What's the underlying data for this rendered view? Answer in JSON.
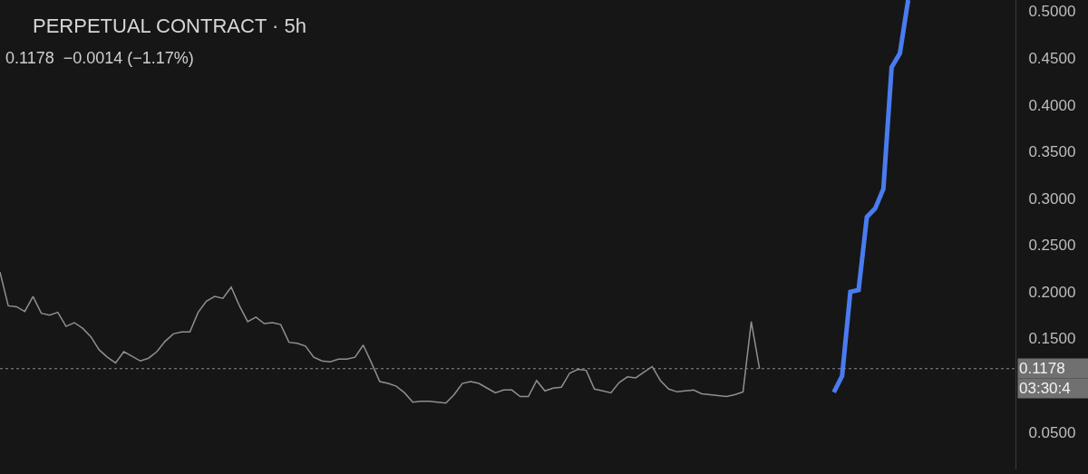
{
  "chart_data": {
    "type": "line",
    "title": "PERPETUAL CONTRACT · 5h",
    "subtitle": "0.1178  −0.0014 (−1.17%)",
    "categories": [
      null,
      null,
      null,
      null,
      null,
      null,
      null,
      null,
      null,
      null,
      null,
      null,
      null,
      null,
      null,
      null,
      null,
      null,
      null,
      null,
      null,
      null,
      null,
      null,
      null,
      null,
      null,
      null,
      null,
      null,
      null,
      null,
      null,
      null,
      null,
      null,
      null,
      null,
      null,
      null,
      null,
      null,
      null,
      null,
      null,
      null,
      null,
      null,
      null,
      null,
      null,
      null,
      null,
      null,
      null,
      null,
      null,
      null,
      null,
      null,
      null,
      null,
      null,
      null,
      null,
      null,
      null,
      null,
      null,
      null,
      null,
      null,
      null,
      null,
      null,
      null,
      null,
      null,
      null,
      null,
      null,
      null,
      null,
      null,
      null,
      null,
      null,
      null,
      null,
      null,
      null,
      null,
      null,
      null,
      null,
      null,
      null,
      null,
      null,
      null,
      null,
      null,
      null,
      null,
      null,
      null,
      null,
      null,
      null,
      null,
      null,
      null,
      null,
      null,
      null,
      null,
      null,
      null,
      null,
      null,
      null,
      null,
      null,
      null
    ],
    "ylim": [
      0.01,
      0.512
    ],
    "yticks": [
      {
        "value": 0.05,
        "label": "0.0500"
      },
      {
        "value": 0.15,
        "label": "0.1500"
      },
      {
        "value": 0.2,
        "label": "0.2000"
      },
      {
        "value": 0.25,
        "label": "0.2500"
      },
      {
        "value": 0.3,
        "label": "0.3000"
      },
      {
        "value": 0.35,
        "label": "0.3500"
      },
      {
        "value": 0.4,
        "label": "0.4000"
      },
      {
        "value": 0.45,
        "label": "0.4500"
      },
      {
        "value": 0.5,
        "label": "0.5000"
      }
    ],
    "tick_labels": "y",
    "line_style": "solid",
    "ref_lines": [
      {
        "axis": "y",
        "value": 0.1178,
        "label": "0.1178",
        "color": "#8c8c8c",
        "line_style": "dotted"
      }
    ],
    "annotations": [
      "03:30:4"
    ],
    "series": [
      {
        "color": "#8f8f8f",
        "values": [
          0.221,
          0.185,
          0.184,
          0.179,
          0.195,
          0.177,
          0.175,
          0.178,
          0.163,
          0.167,
          0.161,
          0.152,
          0.138,
          0.13,
          0.124,
          0.136,
          0.131,
          0.126,
          0.129,
          0.136,
          0.147,
          0.155,
          0.157,
          0.157,
          0.178,
          0.19,
          0.195,
          0.193,
          0.205,
          0.185,
          0.168,
          0.173,
          0.166,
          0.167,
          0.165,
          0.146,
          0.145,
          0.142,
          0.13,
          0.126,
          0.125,
          0.128,
          0.128,
          0.13,
          0.143,
          0.124,
          0.104,
          0.102,
          0.099,
          0.092,
          0.082,
          0.083,
          0.083,
          0.082,
          0.081,
          0.09,
          0.102,
          0.104,
          0.102,
          0.097,
          0.092,
          0.095,
          0.095,
          0.088,
          0.088,
          0.105,
          0.094,
          0.097,
          0.098,
          0.113,
          0.117,
          0.116,
          0.096,
          0.094,
          0.092,
          0.103,
          0.109,
          0.108,
          0.114,
          0.12,
          0.105,
          0.096,
          0.093,
          0.094,
          0.095,
          0.091,
          0.09,
          0.089,
          0.088,
          0.09,
          0.093,
          0.168,
          0.1178,
          null,
          null,
          null,
          null,
          null,
          null,
          null,
          null,
          null,
          null,
          null,
          null,
          null,
          null,
          null,
          null,
          null,
          null,
          null,
          null,
          null,
          null,
          null,
          null,
          null,
          null,
          null,
          null,
          null,
          null,
          null
        ]
      },
      {
        "color": "#4a7cf0",
        "values": [
          null,
          null,
          null,
          null,
          null,
          null,
          null,
          null,
          null,
          null,
          null,
          null,
          null,
          null,
          null,
          null,
          null,
          null,
          null,
          null,
          null,
          null,
          null,
          null,
          null,
          null,
          null,
          null,
          null,
          null,
          null,
          null,
          null,
          null,
          null,
          null,
          null,
          null,
          null,
          null,
          null,
          null,
          null,
          null,
          null,
          null,
          null,
          null,
          null,
          null,
          null,
          null,
          null,
          null,
          null,
          null,
          null,
          null,
          null,
          null,
          null,
          null,
          null,
          null,
          null,
          null,
          null,
          null,
          null,
          null,
          null,
          null,
          null,
          null,
          null,
          null,
          null,
          null,
          null,
          null,
          null,
          null,
          null,
          null,
          null,
          null,
          null,
          null,
          null,
          null,
          null,
          null,
          null,
          null,
          null,
          null,
          null,
          null,
          null,
          null,
          null,
          0.0924,
          0.11,
          0.2,
          0.202,
          0.28,
          0.289,
          0.31,
          0.44,
          0.455,
          0.512,
          null,
          null,
          null,
          null,
          null,
          null,
          null,
          null,
          null,
          null,
          null,
          null,
          null
        ]
      }
    ]
  }
}
